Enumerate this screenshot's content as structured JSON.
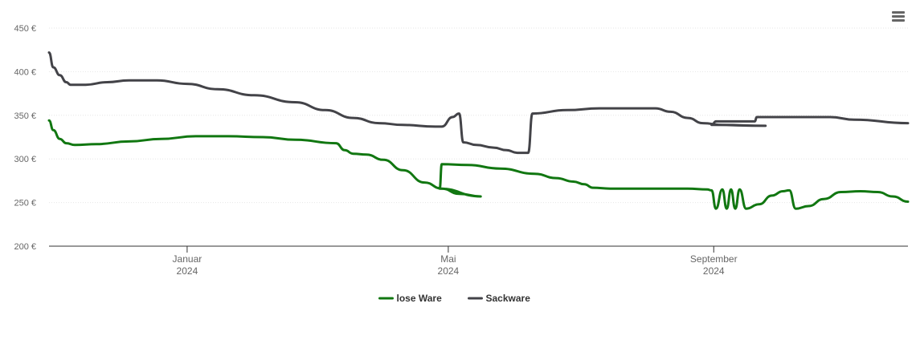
{
  "chart_data": {
    "type": "line",
    "title": "",
    "xlabel": "",
    "ylabel": "",
    "ylim": [
      200,
      450
    ],
    "yticks": [
      "200 €",
      "250 €",
      "300 €",
      "350 €",
      "400 €",
      "450 €"
    ],
    "ytick_values": [
      200,
      250,
      300,
      350,
      400,
      450
    ],
    "xlim": [
      "2023-10-29",
      "2024-11-30"
    ],
    "xticks": [
      {
        "date": "2024-01-01",
        "label": [
          "Januar",
          "2024"
        ]
      },
      {
        "date": "2024-05-01",
        "label": [
          "Mai",
          "2024"
        ]
      },
      {
        "date": "2024-09-01",
        "label": [
          "September",
          "2024"
        ]
      }
    ],
    "grid": true,
    "legend_position": "bottom-center",
    "series": [
      {
        "name": "lose Ware",
        "color": "#117711",
        "points": [
          [
            "2023-10-29",
            344
          ],
          [
            "2023-10-31",
            333
          ],
          [
            "2023-11-03",
            323
          ],
          [
            "2023-11-06",
            318
          ],
          [
            "2023-11-10",
            316
          ],
          [
            "2023-11-20",
            317
          ],
          [
            "2023-12-05",
            320
          ],
          [
            "2023-12-20",
            323
          ],
          [
            "2024-01-05",
            326
          ],
          [
            "2024-01-20",
            326
          ],
          [
            "2024-02-05",
            325
          ],
          [
            "2024-02-20",
            322
          ],
          [
            "2024-03-10",
            318
          ],
          [
            "2024-03-14",
            310
          ],
          [
            "2024-03-18",
            306
          ],
          [
            "2024-03-24",
            305
          ],
          [
            "2024-04-01",
            299
          ],
          [
            "2024-04-10",
            287
          ],
          [
            "2024-04-20",
            273
          ],
          [
            "2024-04-28",
            266
          ],
          [
            "2024-05-06",
            260
          ],
          [
            "2024-05-16",
            257
          ],
          [
            "2024-04-27",
            266
          ],
          [
            "2024-04-28",
            294
          ],
          [
            "2024-05-10",
            293
          ],
          [
            "2024-05-25",
            289
          ],
          [
            "2024-06-10",
            283
          ],
          [
            "2024-06-20",
            278
          ],
          [
            "2024-06-28",
            274
          ],
          [
            "2024-07-03",
            271
          ],
          [
            "2024-07-07",
            267
          ],
          [
            "2024-07-15",
            266
          ],
          [
            "2024-08-01",
            266
          ],
          [
            "2024-08-20",
            266
          ],
          [
            "2024-08-29",
            265
          ],
          [
            "2024-08-31",
            264
          ],
          [
            "2024-09-02",
            243
          ],
          [
            "2024-09-05",
            265
          ],
          [
            "2024-09-07",
            243
          ],
          [
            "2024-09-09",
            265
          ],
          [
            "2024-09-11",
            243
          ],
          [
            "2024-09-13",
            265
          ],
          [
            "2024-09-16",
            243
          ],
          [
            "2024-09-22",
            248
          ],
          [
            "2024-09-28",
            258
          ],
          [
            "2024-10-03",
            263
          ],
          [
            "2024-10-06",
            264
          ],
          [
            "2024-10-09",
            243
          ],
          [
            "2024-10-15",
            246
          ],
          [
            "2024-10-22",
            254
          ],
          [
            "2024-10-30",
            262
          ],
          [
            "2024-11-08",
            263
          ],
          [
            "2024-11-16",
            262
          ],
          [
            "2024-11-23",
            257
          ],
          [
            "2024-11-30",
            251
          ]
        ]
      },
      {
        "name": "Sackware",
        "color": "#434348",
        "points": [
          [
            "2023-10-29",
            422
          ],
          [
            "2023-10-31",
            405
          ],
          [
            "2023-11-03",
            396
          ],
          [
            "2023-11-06",
            388
          ],
          [
            "2023-11-08",
            385
          ],
          [
            "2023-11-15",
            385
          ],
          [
            "2023-11-25",
            388
          ],
          [
            "2023-12-05",
            390
          ],
          [
            "2023-12-18",
            390
          ],
          [
            "2024-01-01",
            386
          ],
          [
            "2024-01-15",
            380
          ],
          [
            "2024-02-01",
            373
          ],
          [
            "2024-02-20",
            365
          ],
          [
            "2024-03-05",
            356
          ],
          [
            "2024-03-18",
            347
          ],
          [
            "2024-03-30",
            341
          ],
          [
            "2024-04-10",
            339
          ],
          [
            "2024-04-25",
            337
          ],
          [
            "2024-04-28",
            337
          ],
          [
            "2024-05-03",
            348
          ],
          [
            "2024-05-06",
            352
          ],
          [
            "2024-05-08",
            319
          ],
          [
            "2024-05-14",
            316
          ],
          [
            "2024-05-22",
            313
          ],
          [
            "2024-05-28",
            310
          ],
          [
            "2024-06-02",
            307
          ],
          [
            "2024-06-07",
            307
          ],
          [
            "2024-06-09",
            352
          ],
          [
            "2024-06-25",
            356
          ],
          [
            "2024-07-10",
            358
          ],
          [
            "2024-07-25",
            358
          ],
          [
            "2024-08-05",
            358
          ],
          [
            "2024-08-12",
            354
          ],
          [
            "2024-08-20",
            347
          ],
          [
            "2024-08-27",
            341
          ],
          [
            "2024-09-05",
            339
          ],
          [
            "2024-09-25",
            338
          ],
          [
            "2024-08-31",
            339
          ],
          [
            "2024-09-02",
            343
          ],
          [
            "2024-09-06",
            343
          ],
          [
            "2024-09-18",
            343
          ],
          [
            "2024-09-20",
            343
          ],
          [
            "2024-09-21",
            348
          ],
          [
            "2024-10-01",
            348
          ],
          [
            "2024-10-15",
            348
          ],
          [
            "2024-10-25",
            348
          ],
          [
            "2024-11-05",
            345
          ],
          [
            "2024-11-30",
            341
          ]
        ]
      }
    ]
  },
  "menu": {
    "icon": "hamburger-menu-icon"
  }
}
